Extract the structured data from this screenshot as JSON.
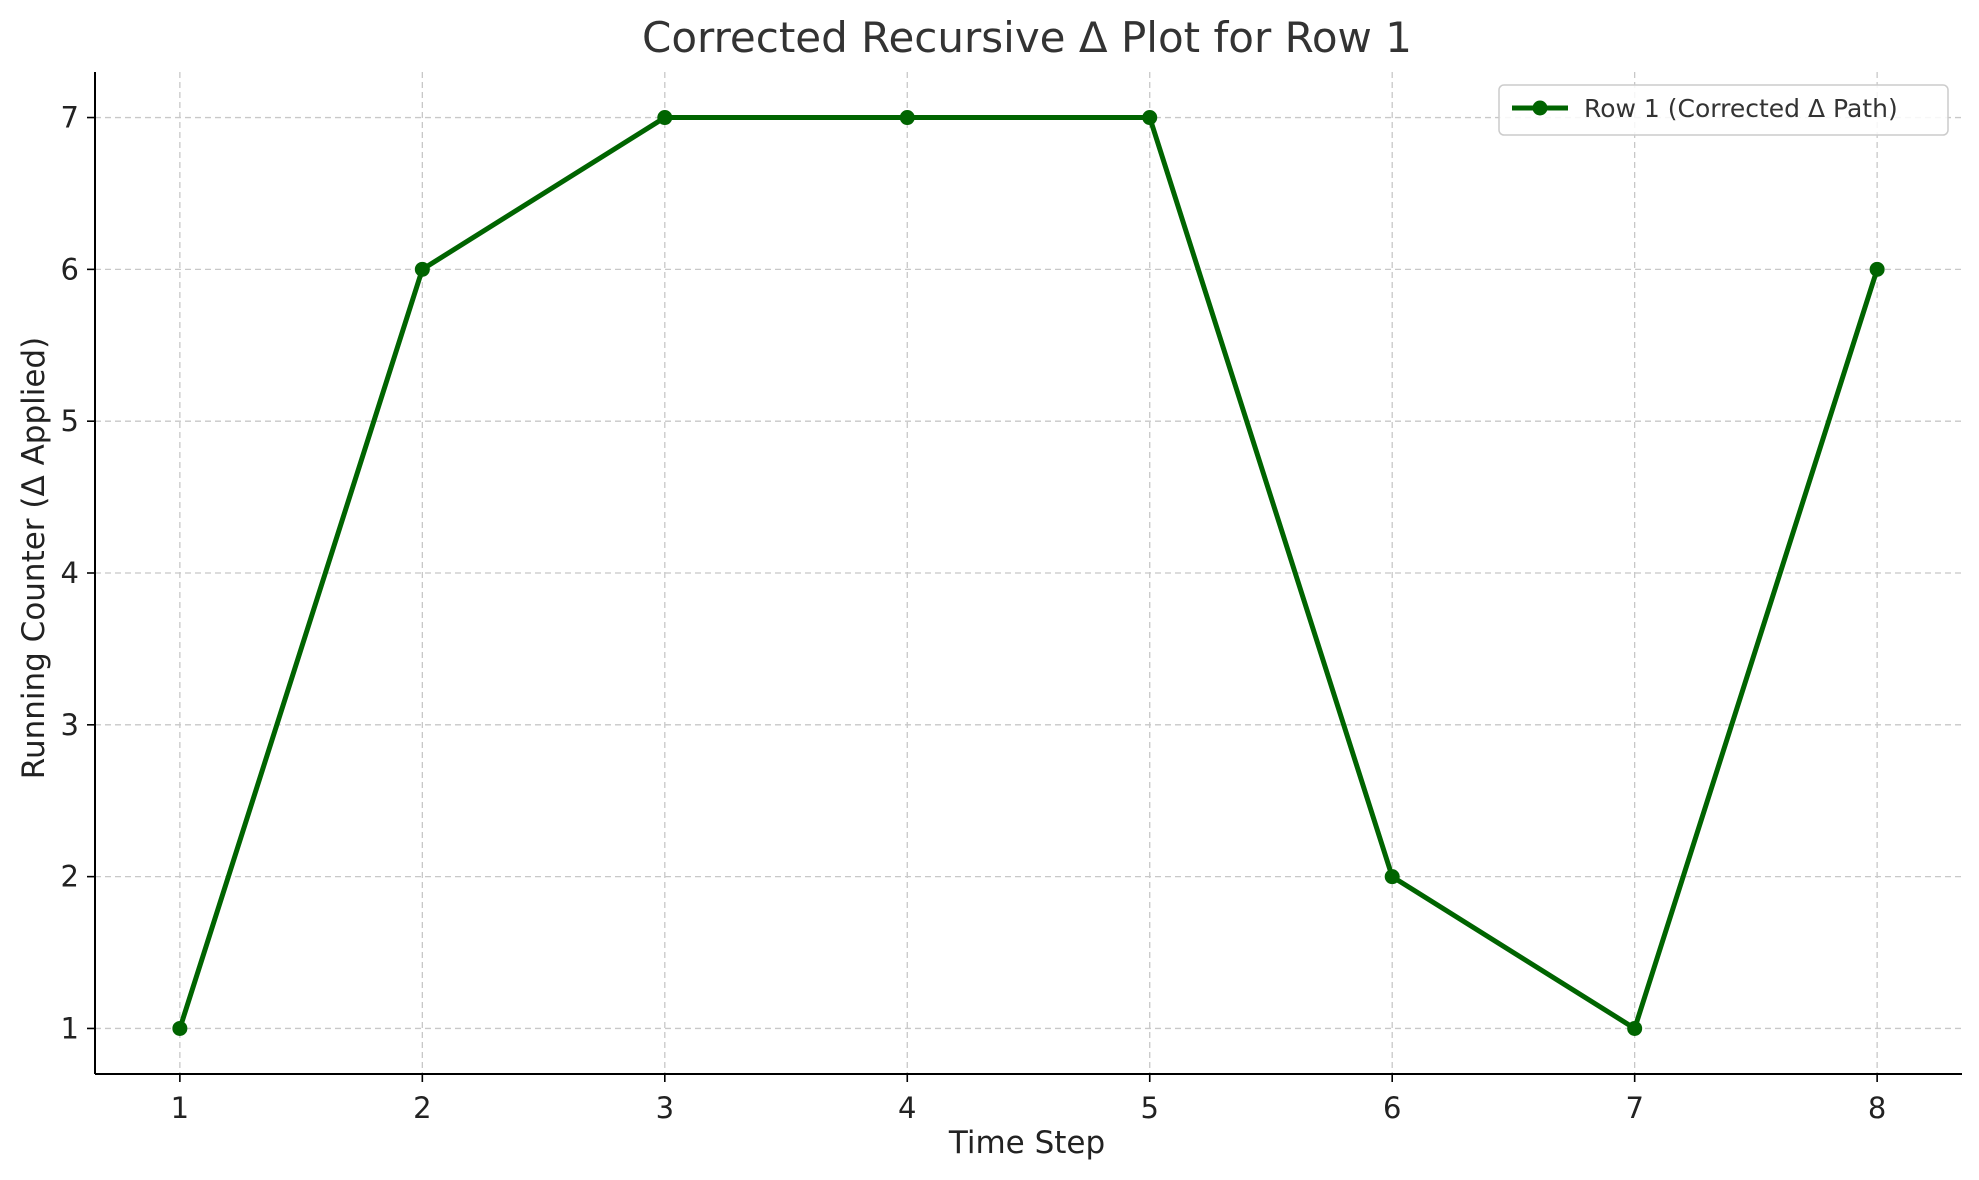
{
  "chart_data": {
    "type": "line",
    "title": "Corrected Recursive Δ Plot for Row 1",
    "xlabel": "Time Step",
    "ylabel": "Running Counter (Δ Applied)",
    "x": [
      1,
      2,
      3,
      4,
      5,
      6,
      7,
      8
    ],
    "series": [
      {
        "name": "Row 1 (Corrected Δ Path)",
        "values": [
          1,
          6,
          7,
          7,
          7,
          2,
          1,
          6
        ],
        "color": "#006400"
      }
    ],
    "xticks": [
      1,
      2,
      3,
      4,
      5,
      6,
      7,
      8
    ],
    "yticks": [
      1,
      2,
      3,
      4,
      5,
      6,
      7
    ],
    "xlim": [
      0.65,
      8.35
    ],
    "ylim": [
      0.7,
      7.3
    ],
    "grid": true,
    "grid_style": "dashed",
    "legend_position": "top-right",
    "marker": "circle"
  }
}
